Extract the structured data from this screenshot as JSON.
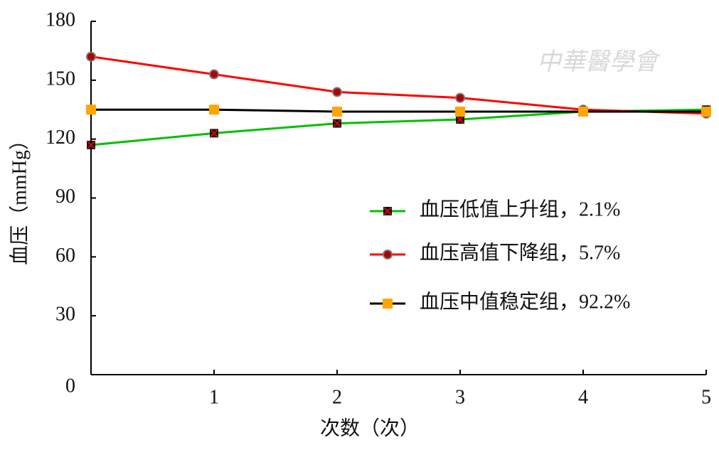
{
  "chart_data": {
    "type": "line",
    "x_label": "次数（次）",
    "y_label": "血压（mmHg）",
    "watermark": "中華醫學會",
    "x": [
      0,
      1,
      2,
      3,
      4,
      5
    ],
    "xlim": [
      0,
      5
    ],
    "xticks": [
      1,
      2,
      3,
      4,
      5
    ],
    "ylim": [
      0,
      180
    ],
    "yticks": [
      0,
      30,
      60,
      90,
      120,
      150,
      180
    ],
    "grid": false,
    "legend": "right",
    "series": [
      {
        "name": "血压低值上升组，2.1%",
        "color": "#00c000",
        "marker": "x-square",
        "values": [
          117,
          123,
          128,
          130,
          134,
          135
        ]
      },
      {
        "name": "血压高值下降组，5.7%",
        "color": "#ff0000",
        "marker": "circle",
        "values": [
          162,
          153,
          144,
          141,
          135,
          133
        ]
      },
      {
        "name": "血压中值稳定组，92.2%",
        "color": "#000000",
        "marker": "square",
        "values": [
          135,
          135,
          134,
          134,
          134,
          134
        ]
      }
    ]
  }
}
